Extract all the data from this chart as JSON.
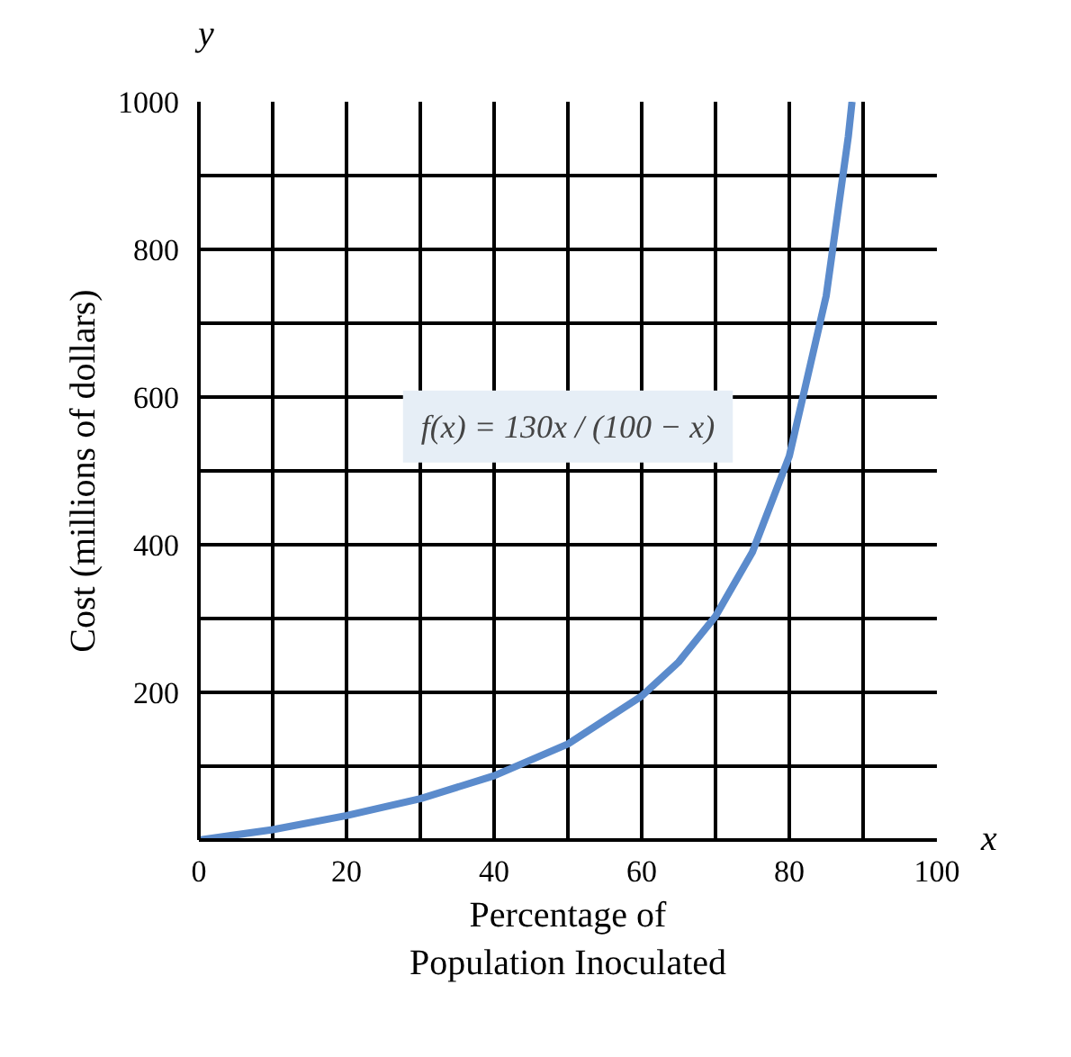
{
  "chart_data": {
    "type": "line",
    "xlabel": "Percentage of\nPopulation Inoculated",
    "ylabel": "Cost (millions of dollars)",
    "x": [
      0,
      10,
      20,
      30,
      40,
      50,
      60,
      65,
      70,
      75,
      80,
      85,
      88,
      88.5
    ],
    "series": [
      {
        "color": "#5b8bcc",
        "values": [
          0,
          14,
          33,
          56,
          87,
          130,
          195,
          241,
          303,
          390,
          520,
          737,
          953,
          1000
        ]
      }
    ],
    "xlim": [
      0,
      100
    ],
    "ylim": [
      0,
      1000
    ],
    "xticks": [
      0,
      {
        "value": 10,
        "label": null
      },
      20,
      {
        "value": 30,
        "label": null
      },
      40,
      {
        "value": 50,
        "label": null
      },
      60,
      {
        "value": 70,
        "label": null
      },
      80,
      {
        "value": 90,
        "label": null
      },
      100
    ],
    "yticks": [
      {
        "value": 0,
        "label": null
      },
      {
        "value": 100,
        "label": null
      },
      200,
      {
        "value": 300,
        "label": null
      },
      400,
      {
        "value": 500,
        "label": null
      },
      600,
      {
        "value": 700,
        "label": null
      },
      800,
      {
        "value": 900,
        "label": null
      },
      1000
    ],
    "grid": true,
    "marker": "none",
    "line_style": "solid",
    "annotations": [
      "f(x) = 130x / (100 − x)",
      "x",
      "y"
    ]
  }
}
